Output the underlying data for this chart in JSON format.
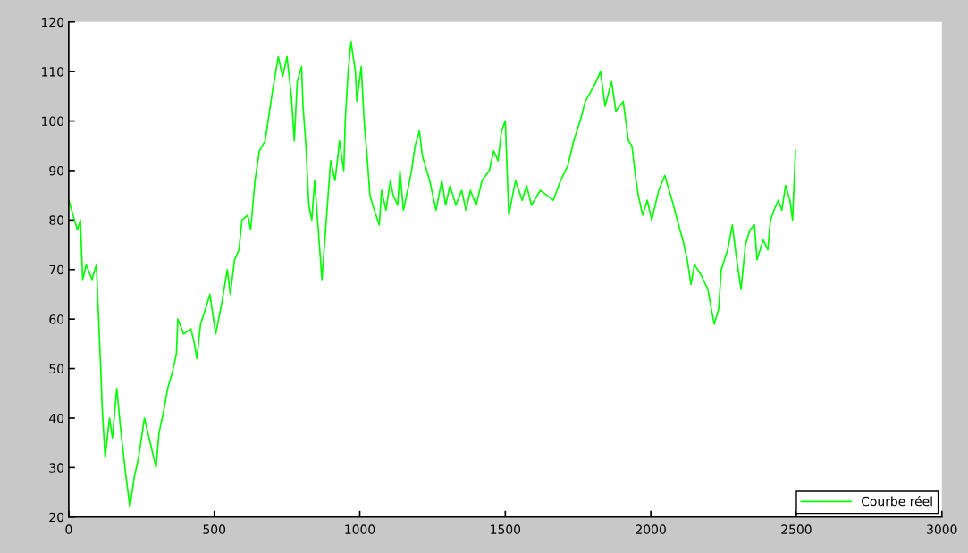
{
  "chart_data": {
    "type": "line",
    "x": [
      0,
      30,
      40,
      48,
      60,
      80,
      95,
      102,
      110,
      115,
      125,
      140,
      150,
      165,
      178,
      195,
      210,
      225,
      240,
      260,
      280,
      300,
      310,
      325,
      340,
      355,
      370,
      375,
      395,
      420,
      432,
      440,
      453,
      475,
      485,
      505,
      525,
      545,
      555,
      570,
      585,
      595,
      615,
      625,
      640,
      655,
      675,
      690,
      700,
      720,
      735,
      750,
      765,
      775,
      785,
      800,
      805,
      815,
      825,
      835,
      845,
      850,
      870,
      885,
      900,
      915,
      925,
      930,
      945,
      950,
      960,
      970,
      985,
      990,
      1005,
      1015,
      1025,
      1035,
      1050,
      1067,
      1075,
      1090,
      1105,
      1115,
      1130,
      1138,
      1150,
      1168,
      1178,
      1190,
      1205,
      1215,
      1240,
      1262,
      1282,
      1295,
      1310,
      1330,
      1350,
      1365,
      1380,
      1400,
      1420,
      1445,
      1460,
      1475,
      1487,
      1500,
      1512,
      1535,
      1558,
      1573,
      1590,
      1620,
      1665,
      1690,
      1715,
      1735,
      1757,
      1775,
      1794,
      1812,
      1827,
      1843,
      1865,
      1880,
      1905,
      1923,
      1935,
      1947,
      1957,
      1972,
      1988,
      2003,
      2027,
      2048,
      2073,
      2100,
      2110,
      2125,
      2138,
      2150,
      2172,
      2196,
      2208,
      2218,
      2233,
      2242,
      2264,
      2280,
      2295,
      2310,
      2325,
      2340,
      2356,
      2365,
      2386,
      2402,
      2411,
      2423,
      2438,
      2450,
      2463,
      2478,
      2487,
      2497
    ],
    "series": [
      {
        "name": "Courbe réel",
        "color": "#00ff00",
        "values": [
          84,
          78,
          80,
          68,
          71,
          68,
          71,
          61,
          50,
          42,
          32,
          40,
          36,
          46,
          38,
          29,
          22,
          28,
          32,
          40,
          35,
          30,
          37,
          41,
          46,
          49,
          53,
          60,
          57,
          58,
          55,
          52,
          59,
          63,
          65,
          57,
          63,
          70,
          65,
          72,
          74,
          80,
          81,
          78,
          88,
          94,
          96,
          102,
          106,
          113,
          109,
          113,
          105,
          96,
          108,
          111,
          103,
          95,
          83,
          80,
          88,
          84,
          68,
          80,
          92,
          88,
          93,
          96,
          90,
          100,
          110,
          116,
          110,
          104,
          111,
          100,
          93,
          85,
          82,
          79,
          86,
          82,
          88,
          85,
          83,
          90,
          82,
          87,
          90,
          95,
          98,
          93,
          88,
          82,
          88,
          83,
          87,
          83,
          86,
          82,
          86,
          83,
          88,
          90,
          94,
          92,
          98,
          100,
          81,
          88,
          84,
          87,
          83,
          86,
          84,
          88,
          91,
          96,
          100,
          104,
          106,
          108,
          110,
          103,
          108,
          102,
          104,
          96,
          95,
          89,
          85,
          81,
          84,
          80,
          86,
          89,
          84,
          78,
          76,
          72,
          67,
          71,
          69,
          66,
          62,
          59,
          62,
          70,
          74,
          79,
          72,
          66,
          75,
          78,
          79,
          72,
          76,
          74,
          80,
          82,
          84,
          82,
          87,
          84,
          80,
          94
        ]
      }
    ],
    "xlim": [
      0,
      3000
    ],
    "xticks": [
      0,
      500,
      1000,
      1500,
      2000,
      2500,
      3000
    ],
    "ylim": [
      20,
      120
    ],
    "yticks": [
      20,
      30,
      40,
      50,
      60,
      70,
      80,
      90,
      100,
      110,
      120
    ],
    "legend": "bottom right"
  }
}
